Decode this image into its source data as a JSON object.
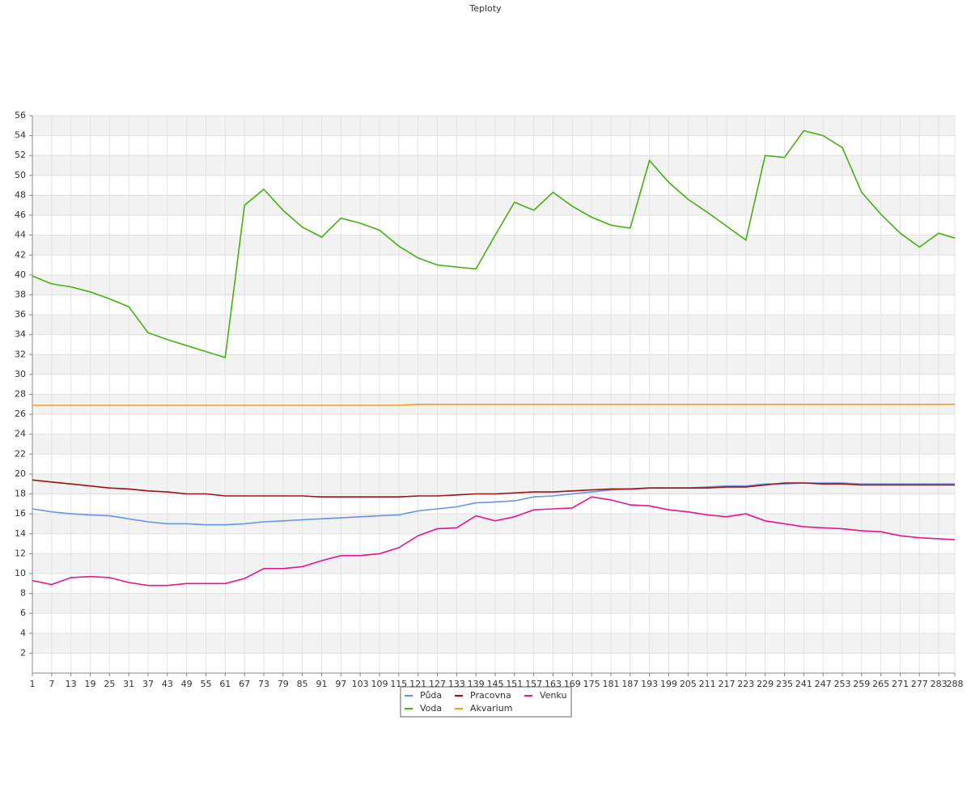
{
  "chart_data": {
    "type": "line",
    "title": "Teploty",
    "x": [
      1,
      7,
      13,
      19,
      25,
      31,
      37,
      43,
      49,
      55,
      61,
      67,
      73,
      79,
      85,
      91,
      97,
      103,
      109,
      115,
      121,
      127,
      133,
      139,
      145,
      151,
      157,
      163,
      169,
      175,
      181,
      187,
      193,
      199,
      205,
      211,
      217,
      223,
      229,
      235,
      241,
      247,
      253,
      259,
      265,
      271,
      277,
      283,
      288
    ],
    "xlim": [
      1,
      288
    ],
    "ylim": [
      0,
      56
    ],
    "yticks": [
      2,
      4,
      6,
      8,
      10,
      12,
      14,
      16,
      18,
      20,
      22,
      24,
      26,
      28,
      30,
      32,
      34,
      36,
      38,
      40,
      42,
      44,
      46,
      48,
      50,
      52,
      54,
      56
    ],
    "grid": true,
    "legend": "bottom",
    "series": [
      {
        "name": "Půda",
        "color": "#6495ed",
        "values": [
          16.5,
          16.2,
          16.0,
          15.9,
          15.8,
          15.5,
          15.2,
          15.0,
          15.0,
          14.9,
          14.9,
          15.0,
          15.2,
          15.3,
          15.4,
          15.5,
          15.6,
          15.7,
          15.8,
          15.9,
          16.3,
          16.5,
          16.7,
          17.1,
          17.2,
          17.3,
          17.7,
          17.8,
          18.0,
          18.2,
          18.4,
          18.5,
          18.6,
          18.6,
          18.6,
          18.7,
          18.8,
          18.8,
          19.0,
          19.0,
          19.1,
          19.1,
          19.1,
          19.0,
          19.0,
          19.0,
          19.0,
          19.0,
          19.0
        ]
      },
      {
        "name": "Voda",
        "color": "#44b20f",
        "values": [
          39.9,
          39.1,
          38.8,
          38.3,
          37.6,
          36.8,
          34.2,
          33.5,
          32.9,
          32.3,
          31.7,
          47,
          48.6,
          46.5,
          44.8,
          43.8,
          45.7,
          45.2,
          44.5,
          42.9,
          41.7,
          41.0,
          40.8,
          40.6,
          44,
          47.3,
          46.5,
          48.3,
          46.9,
          45.8,
          45.0,
          44.7,
          51.5,
          49.3,
          47.6,
          46.3,
          44.9,
          43.5,
          52,
          51.8,
          54.5,
          54,
          52.8,
          48.3,
          46.1,
          44.2,
          42.8,
          44.2,
          43.7
        ]
      },
      {
        "name": "Pracovna",
        "color": "#a01010",
        "values": [
          19.4,
          19.2,
          19.0,
          18.8,
          18.6,
          18.5,
          18.3,
          18.2,
          18.0,
          18.0,
          17.8,
          17.8,
          17.8,
          17.8,
          17.8,
          17.7,
          17.7,
          17.7,
          17.7,
          17.7,
          17.8,
          17.8,
          17.9,
          18.0,
          18.0,
          18.1,
          18.2,
          18.2,
          18.3,
          18.4,
          18.5,
          18.5,
          18.6,
          18.6,
          18.6,
          18.6,
          18.7,
          18.7,
          18.9,
          19.1,
          19.1,
          19.0,
          19.0,
          18.9,
          18.9,
          18.9,
          18.9,
          18.9,
          18.9
        ]
      },
      {
        "name": "Akvarium",
        "color": "#f5a00f",
        "values": [
          26.9,
          26.9,
          26.9,
          26.9,
          26.9,
          26.9,
          26.9,
          26.9,
          26.9,
          26.9,
          26.9,
          26.9,
          26.9,
          26.9,
          26.9,
          26.9,
          26.9,
          26.9,
          26.9,
          26.9,
          27,
          27,
          27,
          27,
          27,
          27,
          27,
          27,
          27,
          27,
          27,
          27,
          27,
          27,
          27,
          27,
          27,
          27,
          27,
          27,
          27,
          27,
          27,
          27,
          27,
          27,
          27,
          27,
          27
        ]
      },
      {
        "name": "Venku",
        "color": "#e8158c",
        "values": [
          9.3,
          8.9,
          9.6,
          9.7,
          9.6,
          9.1,
          8.8,
          8.8,
          9.0,
          9.0,
          9.0,
          9.5,
          10.5,
          10.5,
          10.7,
          11.3,
          11.8,
          11.8,
          12.0,
          12.6,
          13.8,
          14.5,
          14.6,
          15.8,
          15.3,
          15.7,
          16.4,
          16.5,
          16.6,
          17.7,
          17.4,
          16.9,
          16.8,
          16.4,
          16.2,
          15.9,
          15.7,
          16.0,
          15.3,
          15.0,
          14.7,
          14.6,
          14.5,
          14.3,
          14.2,
          13.8,
          13.6,
          13.5,
          13.4
        ]
      }
    ]
  }
}
